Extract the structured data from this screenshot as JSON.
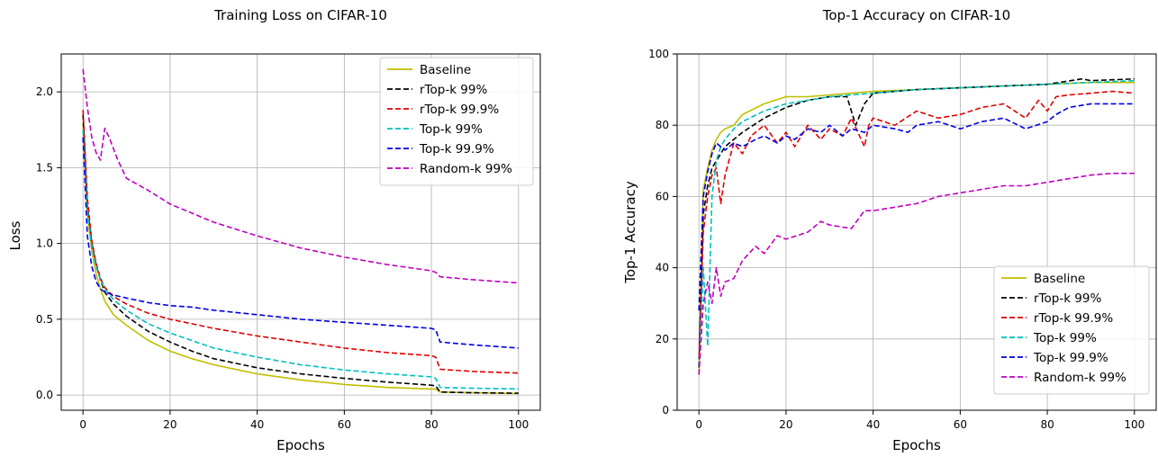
{
  "colors": {
    "Baseline": "#bfbf00",
    "rTop-k 99%": "#000000",
    "rTop-k 99.9%": "#e00000",
    "Top-k 99%": "#00bfbf",
    "Top-k 99.9%": "#0000e0",
    "Random-k 99%": "#bf00bf"
  },
  "chart_data": [
    {
      "type": "line",
      "title": "Training Loss on CIFAR-10",
      "xlabel": "Epochs",
      "ylabel": "Loss",
      "xlim": [
        -5,
        105
      ],
      "ylim": [
        -0.1,
        2.25
      ],
      "xticks": [
        0,
        20,
        40,
        60,
        80,
        100
      ],
      "yticks": [
        0.0,
        0.5,
        1.0,
        1.5,
        2.0
      ],
      "xtick_labels": [
        "0",
        "20",
        "40",
        "60",
        "80",
        "100"
      ],
      "ytick_labels": [
        "0.0",
        "0.5",
        "1.0",
        "1.5",
        "2.0"
      ],
      "grid": true,
      "legend_position": "top-right",
      "series": [
        {
          "name": "Baseline",
          "style": "solid",
          "x": [
            0,
            1,
            2,
            3,
            4,
            5,
            7,
            10,
            15,
            20,
            25,
            30,
            40,
            50,
            60,
            70,
            80,
            81,
            82,
            90,
            100
          ],
          "y": [
            1.8,
            1.2,
            0.95,
            0.8,
            0.7,
            0.62,
            0.53,
            0.46,
            0.36,
            0.29,
            0.24,
            0.2,
            0.14,
            0.1,
            0.07,
            0.05,
            0.04,
            0.04,
            0.02,
            0.015,
            0.01
          ]
        },
        {
          "name": "rTop-k 99%",
          "style": "dashed",
          "x": [
            0,
            1,
            2,
            3,
            4,
            5,
            7,
            10,
            15,
            20,
            25,
            30,
            40,
            50,
            60,
            70,
            80,
            81,
            82,
            90,
            100
          ],
          "y": [
            1.85,
            1.25,
            1.0,
            0.86,
            0.76,
            0.68,
            0.6,
            0.52,
            0.42,
            0.35,
            0.29,
            0.24,
            0.18,
            0.14,
            0.11,
            0.085,
            0.065,
            0.06,
            0.02,
            0.015,
            0.012
          ]
        },
        {
          "name": "rTop-k 99.9%",
          "style": "dashed",
          "x": [
            0,
            1,
            2,
            3,
            4,
            5,
            7,
            10,
            15,
            20,
            25,
            30,
            40,
            50,
            60,
            70,
            80,
            81,
            82,
            90,
            100
          ],
          "y": [
            1.88,
            1.3,
            1.02,
            0.87,
            0.77,
            0.71,
            0.65,
            0.6,
            0.54,
            0.5,
            0.47,
            0.44,
            0.39,
            0.35,
            0.31,
            0.28,
            0.26,
            0.25,
            0.17,
            0.155,
            0.145
          ]
        },
        {
          "name": "Top-k 99%",
          "style": "dashed",
          "x": [
            0,
            1,
            2,
            3,
            4,
            5,
            7,
            10,
            15,
            20,
            25,
            30,
            40,
            50,
            60,
            70,
            80,
            81,
            82,
            90,
            100
          ],
          "y": [
            1.75,
            1.22,
            0.98,
            0.85,
            0.76,
            0.7,
            0.63,
            0.56,
            0.47,
            0.41,
            0.36,
            0.31,
            0.25,
            0.2,
            0.165,
            0.14,
            0.12,
            0.11,
            0.05,
            0.045,
            0.04
          ]
        },
        {
          "name": "Top-k 99.9%",
          "style": "dashed",
          "x": [
            0,
            1,
            2,
            3,
            4,
            5,
            7,
            10,
            15,
            20,
            25,
            30,
            40,
            50,
            60,
            70,
            80,
            81,
            82,
            90,
            100
          ],
          "y": [
            1.7,
            1.05,
            0.85,
            0.75,
            0.7,
            0.68,
            0.66,
            0.64,
            0.61,
            0.59,
            0.58,
            0.56,
            0.53,
            0.5,
            0.48,
            0.46,
            0.44,
            0.43,
            0.35,
            0.33,
            0.31
          ]
        },
        {
          "name": "Random-k 99%",
          "style": "dashed",
          "x": [
            0,
            1,
            2,
            3,
            4,
            5,
            6,
            8,
            10,
            15,
            20,
            25,
            30,
            40,
            50,
            60,
            70,
            80,
            81,
            82,
            90,
            100
          ],
          "y": [
            2.15,
            1.9,
            1.7,
            1.6,
            1.55,
            1.76,
            1.7,
            1.55,
            1.43,
            1.35,
            1.26,
            1.2,
            1.14,
            1.05,
            0.97,
            0.91,
            0.86,
            0.82,
            0.81,
            0.78,
            0.76,
            0.74
          ]
        }
      ]
    },
    {
      "type": "line",
      "title": "Top-1 Accuracy on CIFAR-10",
      "xlabel": "Epochs",
      "ylabel": "Top-1 Accuracy",
      "xlim": [
        -5,
        105
      ],
      "ylim": [
        0,
        100
      ],
      "xticks": [
        0,
        20,
        40,
        60,
        80,
        100
      ],
      "yticks": [
        0,
        20,
        40,
        60,
        80,
        100
      ],
      "xtick_labels": [
        "0",
        "20",
        "40",
        "60",
        "80",
        "100"
      ],
      "ytick_labels": [
        "0",
        "20",
        "40",
        "60",
        "80",
        "100"
      ],
      "grid": true,
      "legend_position": "bottom-right",
      "series": [
        {
          "name": "Baseline",
          "style": "solid",
          "x": [
            0,
            1,
            2,
            3,
            4,
            5,
            6,
            8,
            10,
            15,
            20,
            25,
            30,
            35,
            40,
            50,
            60,
            70,
            80,
            90,
            100
          ],
          "y": [
            10,
            62,
            68,
            73,
            76,
            78,
            79,
            80,
            83,
            86,
            88,
            88,
            88.5,
            89,
            89.5,
            90,
            90.5,
            91,
            91.5,
            92,
            92
          ]
        },
        {
          "name": "rTop-k 99%",
          "style": "dashed",
          "x": [
            0,
            1,
            2,
            3,
            4,
            5,
            6,
            8,
            10,
            15,
            20,
            25,
            30,
            34,
            36,
            38,
            40,
            50,
            60,
            70,
            80,
            88,
            90,
            100
          ],
          "y": [
            12,
            55,
            63,
            68,
            70,
            72,
            74,
            76,
            78,
            82,
            85,
            87,
            88,
            88,
            80,
            86,
            89,
            90,
            90.5,
            91,
            91.5,
            93,
            92.5,
            93
          ]
        },
        {
          "name": "rTop-k 99.9%",
          "style": "dashed",
          "x": [
            0,
            1,
            2,
            3,
            4,
            5,
            6,
            8,
            10,
            12,
            15,
            18,
            20,
            22,
            25,
            28,
            30,
            33,
            35,
            38,
            39,
            40,
            45,
            50,
            55,
            60,
            65,
            70,
            75,
            78,
            80,
            82,
            85,
            90,
            95,
            100
          ],
          "y": [
            15,
            50,
            60,
            66,
            68,
            58,
            66,
            75,
            72,
            77,
            80,
            75,
            78,
            74,
            80,
            76,
            79,
            77,
            82,
            74,
            80,
            82,
            80,
            84,
            82,
            83,
            85,
            86,
            82,
            87,
            84,
            88,
            88.5,
            89,
            89.5,
            89
          ]
        },
        {
          "name": "Top-k 99%",
          "style": "dashed",
          "x": [
            0,
            1,
            2,
            3,
            4,
            5,
            6,
            8,
            10,
            15,
            20,
            25,
            30,
            35,
            40,
            50,
            60,
            70,
            80,
            90,
            100
          ],
          "y": [
            10,
            40,
            18,
            60,
            70,
            74,
            76,
            79,
            81,
            84,
            86,
            87,
            88,
            88.5,
            89,
            90,
            90.5,
            91,
            91.5,
            92,
            92.5
          ]
        },
        {
          "name": "Top-k 99.9%",
          "style": "dashed",
          "x": [
            0,
            1,
            2,
            3,
            4,
            5,
            6,
            8,
            10,
            13,
            15,
            18,
            20,
            22,
            25,
            28,
            30,
            33,
            35,
            38,
            40,
            45,
            48,
            50,
            55,
            60,
            65,
            70,
            75,
            80,
            82,
            85,
            90,
            95,
            100
          ],
          "y": [
            28,
            60,
            67,
            72,
            75,
            74,
            73,
            75,
            74,
            76,
            77,
            75,
            77,
            76,
            79,
            78,
            80,
            77,
            79,
            78,
            80,
            79,
            78,
            80,
            81,
            79,
            81,
            82,
            79,
            81,
            83,
            85,
            86,
            86,
            86
          ]
        },
        {
          "name": "Random-k 99%",
          "style": "dashed",
          "x": [
            0,
            1,
            2,
            3,
            4,
            5,
            6,
            8,
            10,
            13,
            15,
            18,
            20,
            25,
            28,
            30,
            35,
            38,
            40,
            45,
            50,
            55,
            60,
            65,
            70,
            75,
            80,
            85,
            90,
            95,
            100
          ],
          "y": [
            10,
            30,
            36,
            30,
            40,
            32,
            36,
            37,
            42,
            46,
            44,
            49,
            48,
            50,
            53,
            52,
            51,
            56,
            56,
            57,
            58,
            60,
            61,
            62,
            63,
            63,
            64,
            65,
            66,
            66.5,
            66.5
          ]
        }
      ]
    }
  ]
}
